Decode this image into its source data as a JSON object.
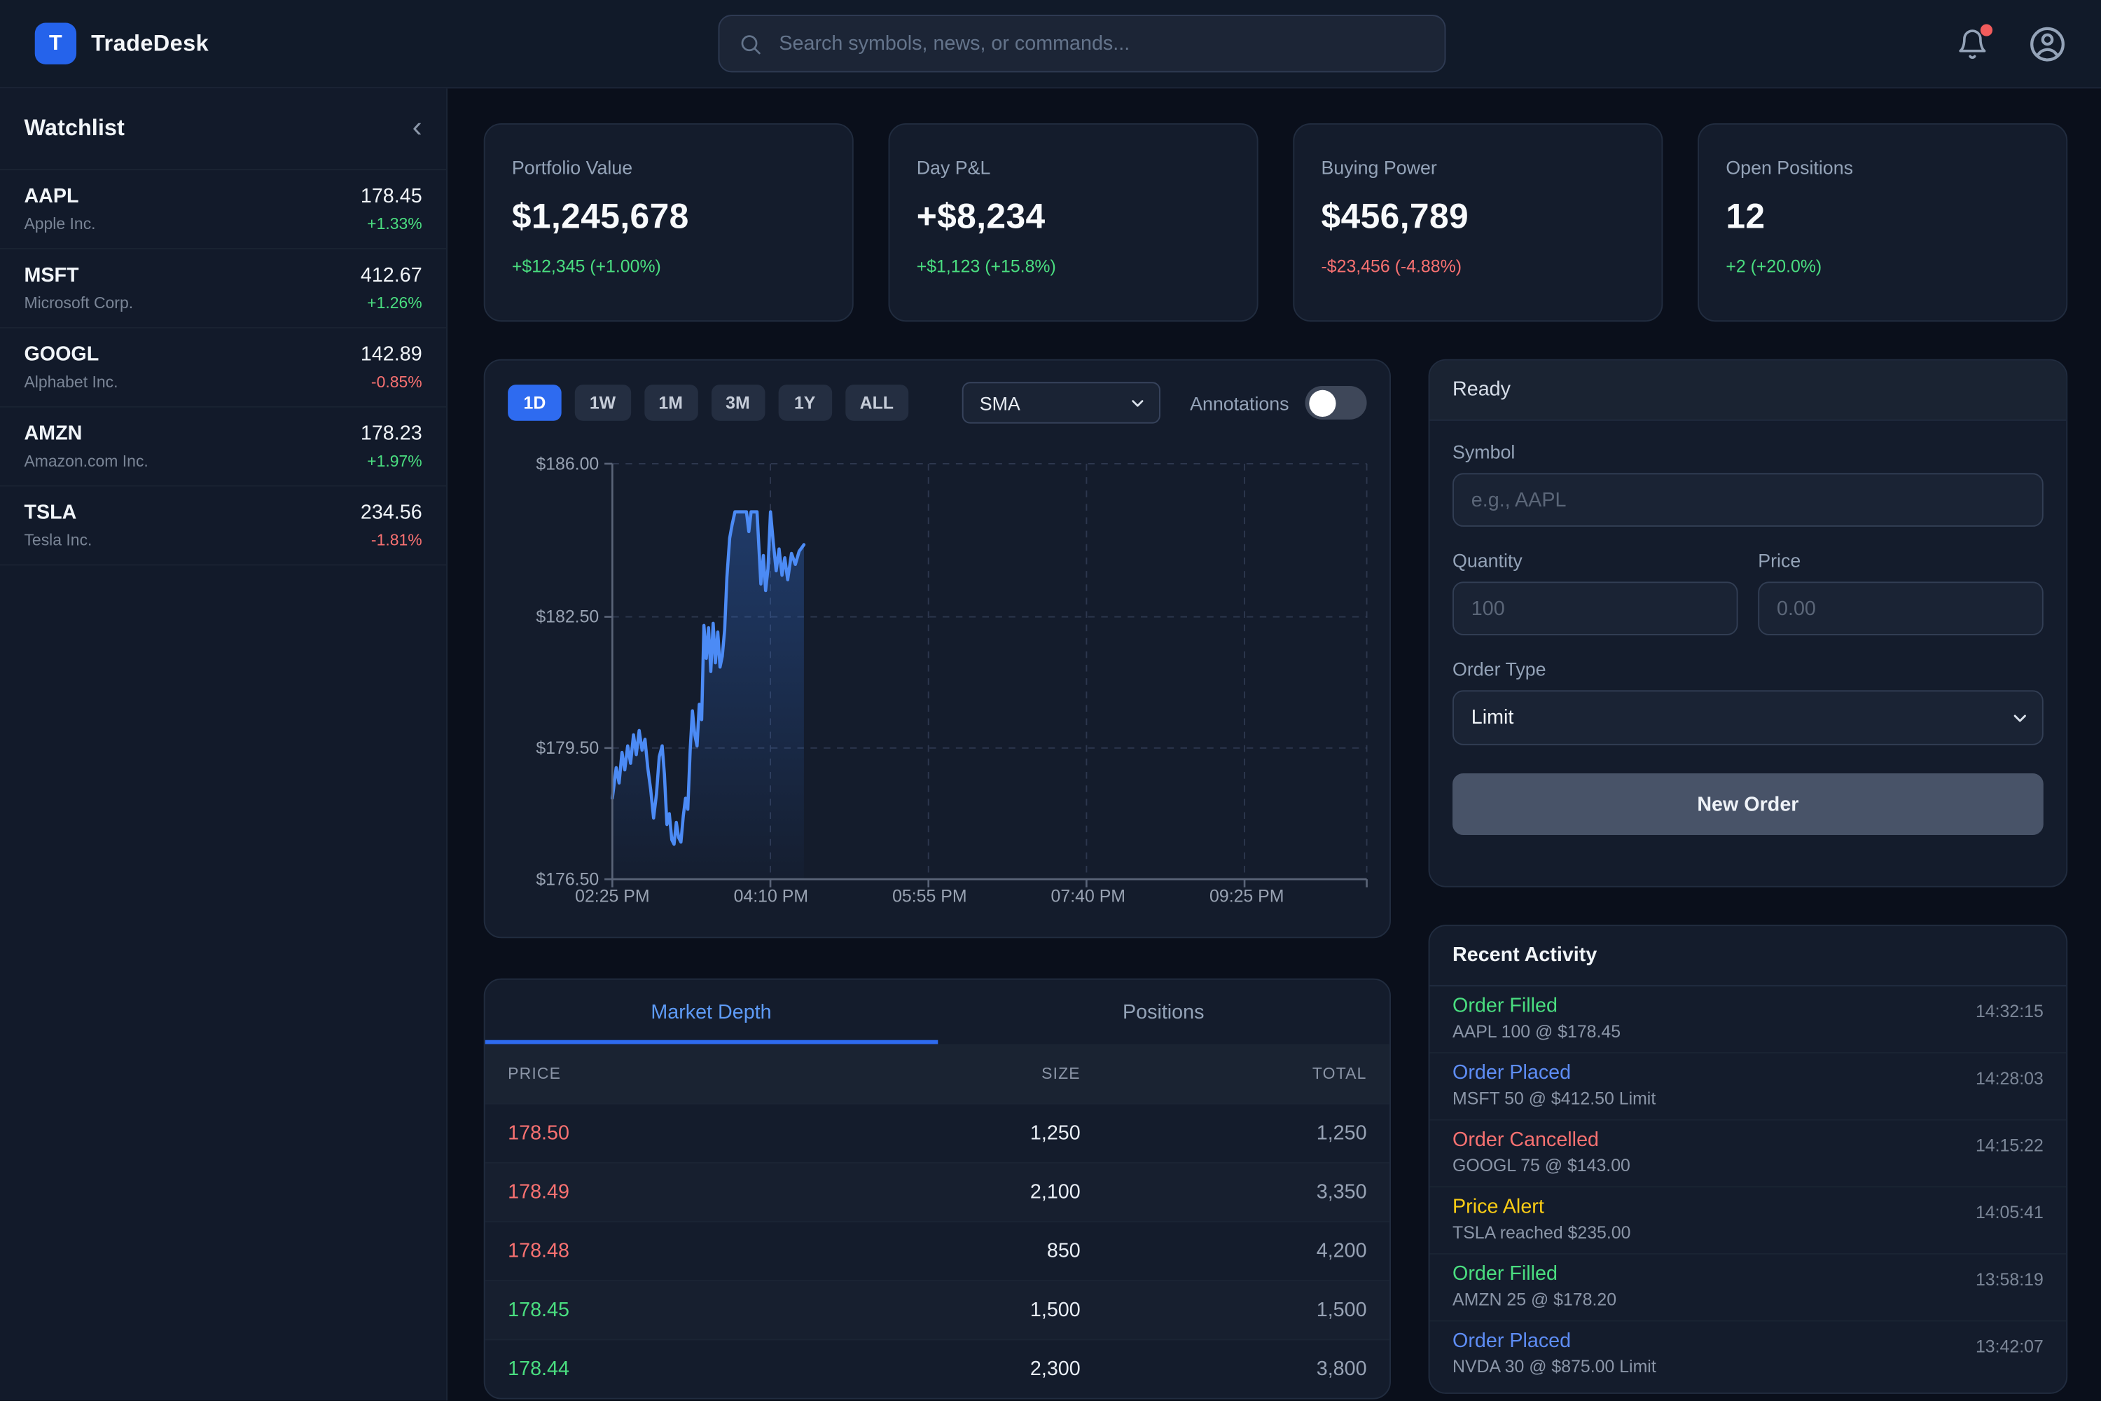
{
  "header": {
    "brand": {
      "logo_letter": "T",
      "name": "TradeDesk"
    },
    "search": {
      "placeholder": "Search symbols, news, or commands..."
    },
    "notifications": {
      "unread_dot": true
    }
  },
  "sidebar": {
    "title": "Watchlist",
    "items": [
      {
        "symbol": "AAPL",
        "company": "Apple Inc.",
        "price": "178.45",
        "change": "+1.33%",
        "direction": "up"
      },
      {
        "symbol": "MSFT",
        "company": "Microsoft Corp.",
        "price": "412.67",
        "change": "+1.26%",
        "direction": "up"
      },
      {
        "symbol": "GOOGL",
        "company": "Alphabet Inc.",
        "price": "142.89",
        "change": "-0.85%",
        "direction": "down"
      },
      {
        "symbol": "AMZN",
        "company": "Amazon.com Inc.",
        "price": "178.23",
        "change": "+1.97%",
        "direction": "up"
      },
      {
        "symbol": "TSLA",
        "company": "Tesla Inc.",
        "price": "234.56",
        "change": "-1.81%",
        "direction": "down"
      }
    ]
  },
  "stats": [
    {
      "label": "Portfolio Value",
      "value": "$1,245,678",
      "change": "+$12,345 (+1.00%)",
      "direction": "up"
    },
    {
      "label": "Day P&L",
      "value": "+$8,234",
      "change": "+$1,123 (+15.8%)",
      "direction": "up"
    },
    {
      "label": "Buying Power",
      "value": "$456,789",
      "change": "-$23,456 (-4.88%)",
      "direction": "down"
    },
    {
      "label": "Open Positions",
      "value": "12",
      "change": "+2 (+20.0%)",
      "direction": "up"
    }
  ],
  "chart_controls": {
    "timeframes": [
      "1D",
      "1W",
      "1M",
      "3M",
      "1Y",
      "ALL"
    ],
    "active_timeframe": "1D",
    "indicator_selected": "SMA",
    "annotations_label": "Annotations",
    "annotations_enabled": false
  },
  "chart_data": {
    "type": "area",
    "title": "Intraday price chart (1D)",
    "grid": "dashed",
    "legend": false,
    "y_axis": {
      "min": 176.5,
      "max": 186.0,
      "ticks": [
        {
          "label": "$186.00",
          "value": 186.0
        },
        {
          "label": "$182.50",
          "value": 182.5
        },
        {
          "label": "$179.50",
          "value": 179.5
        },
        {
          "label": "$176.50",
          "value": 176.5
        }
      ]
    },
    "x_axis": {
      "ticks": [
        "02:25 PM",
        "04:10 PM",
        "05:55 PM",
        "07:40 PM",
        "09:25 PM"
      ],
      "tick_spacing_fraction": 0.2095,
      "unlabeled_right_edge_tick": true
    },
    "data_extent_fraction": 0.254,
    "series": [
      {
        "name": "Price",
        "color": "#4c8bf5",
        "fill_gradient": [
          "rgba(59,130,246,0.30)",
          "rgba(59,130,246,0.02)"
        ],
        "points": [
          [
            0.0,
            178.35
          ],
          [
            0.02,
            179.05
          ],
          [
            0.035,
            178.7
          ],
          [
            0.05,
            179.4
          ],
          [
            0.065,
            179.0
          ],
          [
            0.08,
            179.55
          ],
          [
            0.095,
            179.15
          ],
          [
            0.11,
            179.8
          ],
          [
            0.125,
            179.35
          ],
          [
            0.14,
            179.9
          ],
          [
            0.155,
            179.45
          ],
          [
            0.17,
            179.7
          ],
          [
            0.185,
            179.05
          ],
          [
            0.2,
            178.55
          ],
          [
            0.215,
            177.9
          ],
          [
            0.23,
            178.45
          ],
          [
            0.245,
            179.3
          ],
          [
            0.26,
            179.55
          ],
          [
            0.272,
            178.9
          ],
          [
            0.285,
            177.75
          ],
          [
            0.297,
            178.0
          ],
          [
            0.31,
            177.4
          ],
          [
            0.322,
            177.3
          ],
          [
            0.334,
            177.8
          ],
          [
            0.346,
            177.45
          ],
          [
            0.358,
            177.35
          ],
          [
            0.37,
            177.95
          ],
          [
            0.382,
            178.35
          ],
          [
            0.394,
            178.1
          ],
          [
            0.406,
            179.45
          ],
          [
            0.418,
            180.35
          ],
          [
            0.43,
            179.8
          ],
          [
            0.442,
            179.55
          ],
          [
            0.454,
            180.5
          ],
          [
            0.466,
            180.15
          ],
          [
            0.478,
            182.3
          ],
          [
            0.49,
            181.55
          ],
          [
            0.502,
            182.25
          ],
          [
            0.514,
            181.25
          ],
          [
            0.526,
            182.35
          ],
          [
            0.538,
            181.45
          ],
          [
            0.55,
            182.15
          ],
          [
            0.562,
            181.35
          ],
          [
            0.574,
            181.6
          ],
          [
            0.586,
            182.2
          ],
          [
            0.598,
            183.4
          ],
          [
            0.612,
            184.3
          ],
          [
            0.625,
            184.6
          ],
          [
            0.64,
            184.9
          ],
          [
            0.7,
            184.9
          ],
          [
            0.712,
            184.45
          ],
          [
            0.724,
            184.9
          ],
          [
            0.755,
            184.9
          ],
          [
            0.775,
            183.25
          ],
          [
            0.788,
            183.9
          ],
          [
            0.8,
            183.1
          ],
          [
            0.812,
            183.6
          ],
          [
            0.825,
            184.9
          ],
          [
            0.84,
            184.2
          ],
          [
            0.855,
            183.55
          ],
          [
            0.87,
            184.05
          ],
          [
            0.885,
            183.45
          ],
          [
            0.9,
            183.85
          ],
          [
            0.915,
            183.35
          ],
          [
            0.935,
            183.95
          ],
          [
            0.955,
            183.7
          ],
          [
            0.975,
            184.0
          ],
          [
            1.0,
            184.15
          ]
        ]
      }
    ]
  },
  "depth": {
    "tabs": [
      {
        "label": "Market Depth",
        "active": true
      },
      {
        "label": "Positions",
        "active": false
      }
    ],
    "columns": [
      "PRICE",
      "SIZE",
      "TOTAL"
    ],
    "rows": [
      {
        "price": "178.50",
        "size": "1,250",
        "total": "1,250",
        "side": "ask"
      },
      {
        "price": "178.49",
        "size": "2,100",
        "total": "3,350",
        "side": "ask"
      },
      {
        "price": "178.48",
        "size": "850",
        "total": "4,200",
        "side": "ask"
      },
      {
        "price": "178.45",
        "size": "1,500",
        "total": "1,500",
        "side": "bid"
      },
      {
        "price": "178.44",
        "size": "2,300",
        "total": "3,800",
        "side": "bid"
      }
    ]
  },
  "order_form": {
    "status": "Ready",
    "symbol_label": "Symbol",
    "symbol_placeholder": "e.g., AAPL",
    "quantity_label": "Quantity",
    "quantity_placeholder": "100",
    "price_label": "Price",
    "price_placeholder": "0.00",
    "order_type_label": "Order Type",
    "order_type_selected": "Limit",
    "submit_label": "New Order"
  },
  "activity": {
    "title": "Recent Activity",
    "items": [
      {
        "type": "Order Filled",
        "detail": "AAPL 100 @ $178.45",
        "time": "14:32:15",
        "status_color": "green"
      },
      {
        "type": "Order Placed",
        "detail": "MSFT 50 @ $412.50 Limit",
        "time": "14:28:03",
        "status_color": "blue"
      },
      {
        "type": "Order Cancelled",
        "detail": "GOOGL 75 @ $143.00",
        "time": "14:15:22",
        "status_color": "red"
      },
      {
        "type": "Price Alert",
        "detail": "TSLA reached $235.00",
        "time": "14:05:41",
        "status_color": "yellow"
      },
      {
        "type": "Order Filled",
        "detail": "AMZN 25 @ $178.20",
        "time": "13:58:19",
        "status_color": "green"
      },
      {
        "type": "Order Placed",
        "detail": "NVDA 30 @ $875.00 Limit",
        "time": "13:42:07",
        "status_color": "blue"
      }
    ]
  },
  "colors": {
    "accent_blue": "#2e6bf0",
    "chart_line": "#4c8bf5",
    "positive_green": "#4ade80",
    "negative_red": "#f87171",
    "alert_yellow": "#facc15",
    "notification_dot": "#f25c5c"
  }
}
